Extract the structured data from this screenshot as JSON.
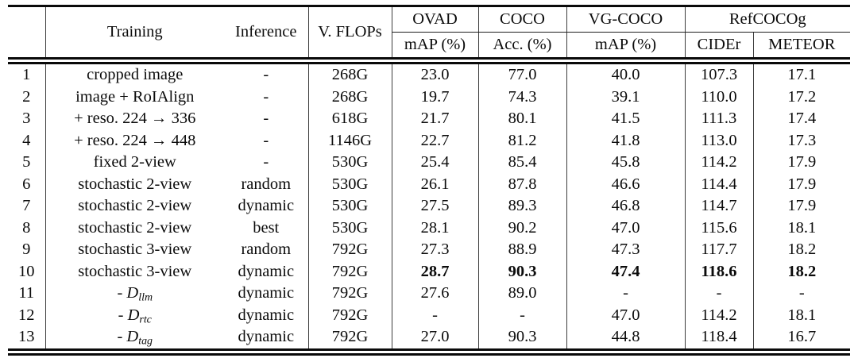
{
  "colors": {
    "background": "#ffffff",
    "text": "#0b0b0b",
    "rules": "#0a0a0a"
  },
  "table": {
    "header": {
      "row_number": "",
      "training": "Training",
      "inference": "Inference",
      "vflops": "V. FLOPs",
      "groups": [
        {
          "label": "OVAD",
          "sub": [
            "mAP (%)"
          ]
        },
        {
          "label": "COCO",
          "sub": [
            "Acc. (%)"
          ]
        },
        {
          "label": "VG-COCO",
          "sub": [
            "mAP (%)"
          ]
        },
        {
          "label": "RefCOCOg",
          "sub": [
            "CIDEr",
            "METEOR"
          ]
        }
      ]
    },
    "rows": [
      {
        "num": "1",
        "training": "cropped image",
        "inference": "-",
        "vflops": "268G",
        "ovad": "23.0",
        "coco": "77.0",
        "vgcoco": "40.0",
        "cider": "107.3",
        "meteor": "17.1"
      },
      {
        "num": "2",
        "training": "image + RoIAlign",
        "inference": "-",
        "vflops": "268G",
        "ovad": "19.7",
        "coco": "74.3",
        "vgcoco": "39.1",
        "cider": "110.0",
        "meteor": "17.2"
      },
      {
        "num": "3",
        "training": "+ reso. 224 → 336",
        "inference": "-",
        "vflops": "618G",
        "ovad": "21.7",
        "coco": "80.1",
        "vgcoco": "41.5",
        "cider": "111.3",
        "meteor": "17.4"
      },
      {
        "num": "4",
        "training": "+ reso. 224 → 448",
        "inference": "-",
        "vflops": "1146G",
        "ovad": "22.7",
        "coco": "81.2",
        "vgcoco": "41.8",
        "cider": "113.0",
        "meteor": "17.3"
      },
      {
        "num": "5",
        "training": "fixed 2-view",
        "inference": "-",
        "vflops": "530G",
        "ovad": "25.4",
        "coco": "85.4",
        "vgcoco": "45.8",
        "cider": "114.2",
        "meteor": "17.9"
      },
      {
        "num": "6",
        "training": "stochastic 2-view",
        "inference": "random",
        "vflops": "530G",
        "ovad": "26.1",
        "coco": "87.8",
        "vgcoco": "46.6",
        "cider": "114.4",
        "meteor": "17.9"
      },
      {
        "num": "7",
        "training": "stochastic 2-view",
        "inference": "dynamic",
        "vflops": "530G",
        "ovad": "27.5",
        "coco": "89.3",
        "vgcoco": "46.8",
        "cider": "114.7",
        "meteor": "17.9"
      },
      {
        "num": "8",
        "training": "stochastic 2-view",
        "inference": "best",
        "vflops": "530G",
        "ovad": "28.1",
        "coco": "90.2",
        "vgcoco": "47.0",
        "cider": "115.6",
        "meteor": "18.1"
      },
      {
        "num": "9",
        "training": "stochastic 3-view",
        "inference": "random",
        "vflops": "792G",
        "ovad": "27.3",
        "coco": "88.9",
        "vgcoco": "47.3",
        "cider": "117.7",
        "meteor": "18.2"
      },
      {
        "num": "10",
        "training": "stochastic 3-view",
        "inference": "dynamic",
        "vflops": "792G",
        "ovad": "28.7",
        "coco": "90.3",
        "vgcoco": "47.4",
        "cider": "118.6",
        "meteor": "18.2",
        "bold_metrics": true
      },
      {
        "num": "11",
        "training": "- D_{llm}",
        "inference": "dynamic",
        "vflops": "792G",
        "ovad": "27.6",
        "coco": "89.0",
        "vgcoco": "-",
        "cider": "-",
        "meteor": "-"
      },
      {
        "num": "12",
        "training": "- D_{rtc}",
        "inference": "dynamic",
        "vflops": "792G",
        "ovad": "-",
        "coco": "-",
        "vgcoco": "47.0",
        "cider": "114.2",
        "meteor": "18.1"
      },
      {
        "num": "13",
        "training": "- D_{tag}",
        "inference": "dynamic",
        "vflops": "792G",
        "ovad": "27.0",
        "coco": "90.3",
        "vgcoco": "44.8",
        "cider": "118.4",
        "meteor": "16.7"
      }
    ]
  }
}
